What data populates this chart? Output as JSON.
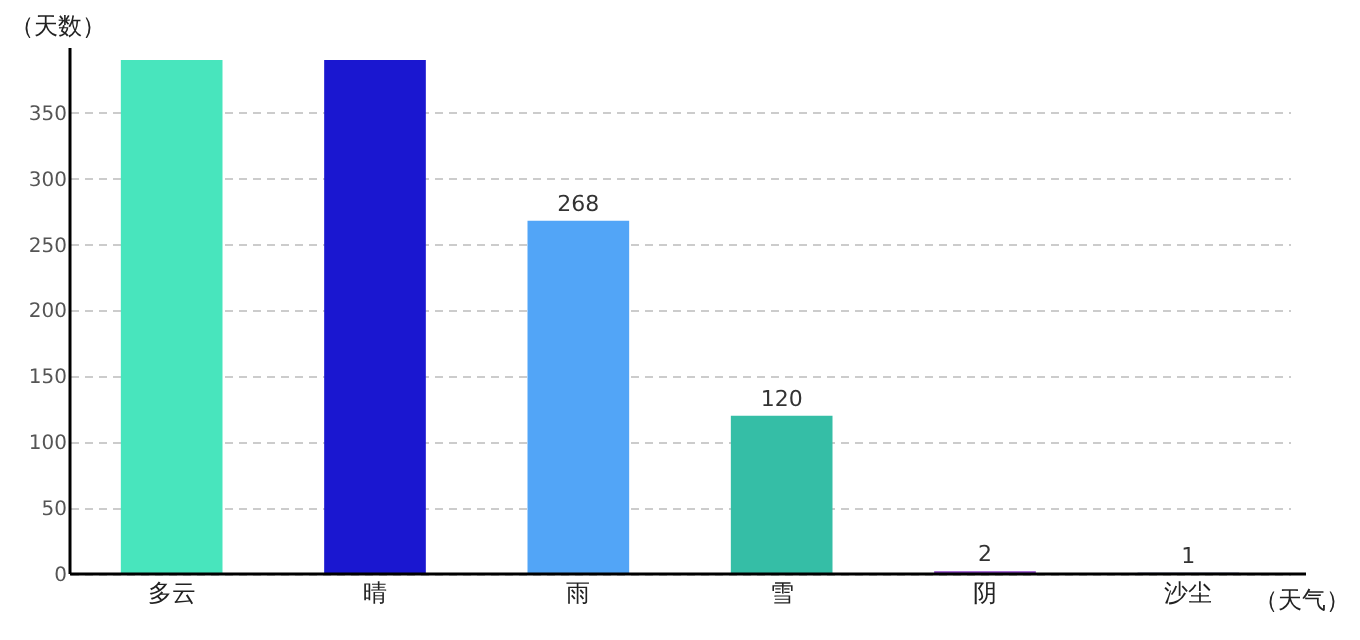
{
  "chart_data": {
    "type": "bar",
    "xlabel": "（天气）",
    "ylabel": "（天数）",
    "categories": [
      "多云",
      "晴",
      "雨",
      "雪",
      "阴",
      "沙尘"
    ],
    "values": [
      390,
      390,
      268,
      120,
      2,
      1
    ],
    "colors": [
      "#48e5bd",
      "#1a17d0",
      "#52a5f7",
      "#35bea6",
      "#8a3fc6",
      "#1a2a6b"
    ],
    "value_labels": [
      null,
      null,
      "268",
      "120",
      "2",
      "1"
    ],
    "ylim": [
      0,
      390
    ],
    "yticks": [
      0,
      50,
      100,
      150,
      200,
      250,
      300,
      350
    ],
    "grid": "y"
  }
}
